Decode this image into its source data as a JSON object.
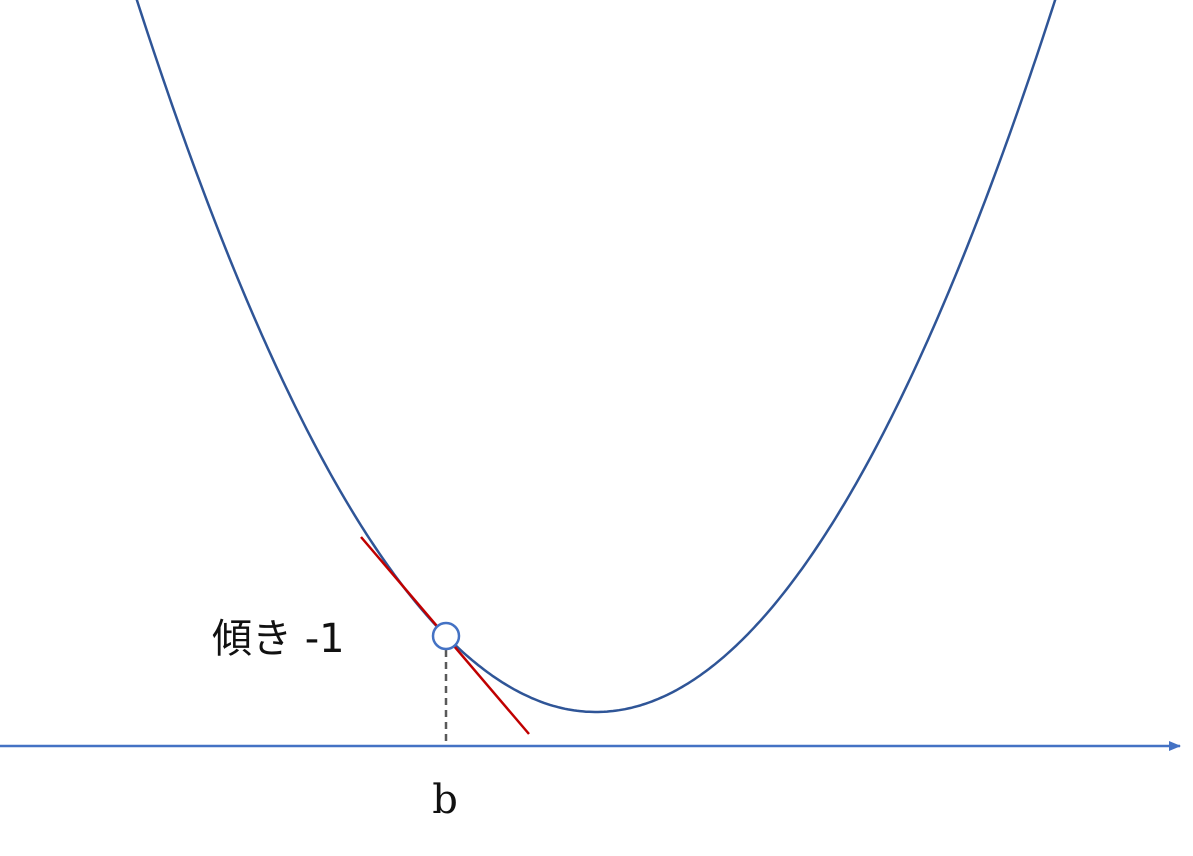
{
  "diagram": {
    "slope_label": "傾き -1",
    "axis_point_label": "b"
  },
  "colors": {
    "curve": "#2f5597",
    "tangent": "#c00000",
    "axis": "#4472c4",
    "guide": "#595959",
    "point_fill": "#ffffff",
    "point_stroke": "#4472c4"
  }
}
